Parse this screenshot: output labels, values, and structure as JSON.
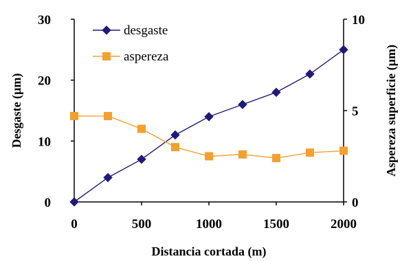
{
  "chart_data": {
    "type": "line",
    "title": "",
    "xlabel": "Distancia cortada (m)",
    "ylabel": "Desgaste (µm)",
    "y2label": "Aspereza superficie (µm)",
    "xlim": [
      0,
      2000
    ],
    "ylim": [
      0,
      30
    ],
    "y2lim": [
      0,
      10
    ],
    "x_ticks": [
      "0",
      "500",
      "1000",
      "1500",
      "2000"
    ],
    "y_ticks": [
      "0",
      "10",
      "20",
      "30"
    ],
    "y2_ticks": [
      "0",
      "5",
      "10"
    ],
    "grid": false,
    "legend_position": "top-left",
    "series": [
      {
        "name": "desgaste",
        "axis": "left",
        "color": "#1f1a7a",
        "marker": "diamond",
        "x": [
          0,
          250,
          500,
          750,
          1000,
          1250,
          1500,
          1750,
          2000
        ],
        "y": [
          0,
          4,
          7,
          11,
          14,
          16,
          18,
          21,
          25
        ]
      },
      {
        "name": "aspereza",
        "axis": "right",
        "color": "#f5a02e",
        "marker": "square",
        "x": [
          0,
          250,
          500,
          750,
          1000,
          1250,
          1500,
          1750,
          2000
        ],
        "y": [
          4.7,
          4.7,
          4.0,
          3.0,
          2.5,
          2.6,
          2.4,
          2.7,
          2.8
        ]
      }
    ]
  }
}
